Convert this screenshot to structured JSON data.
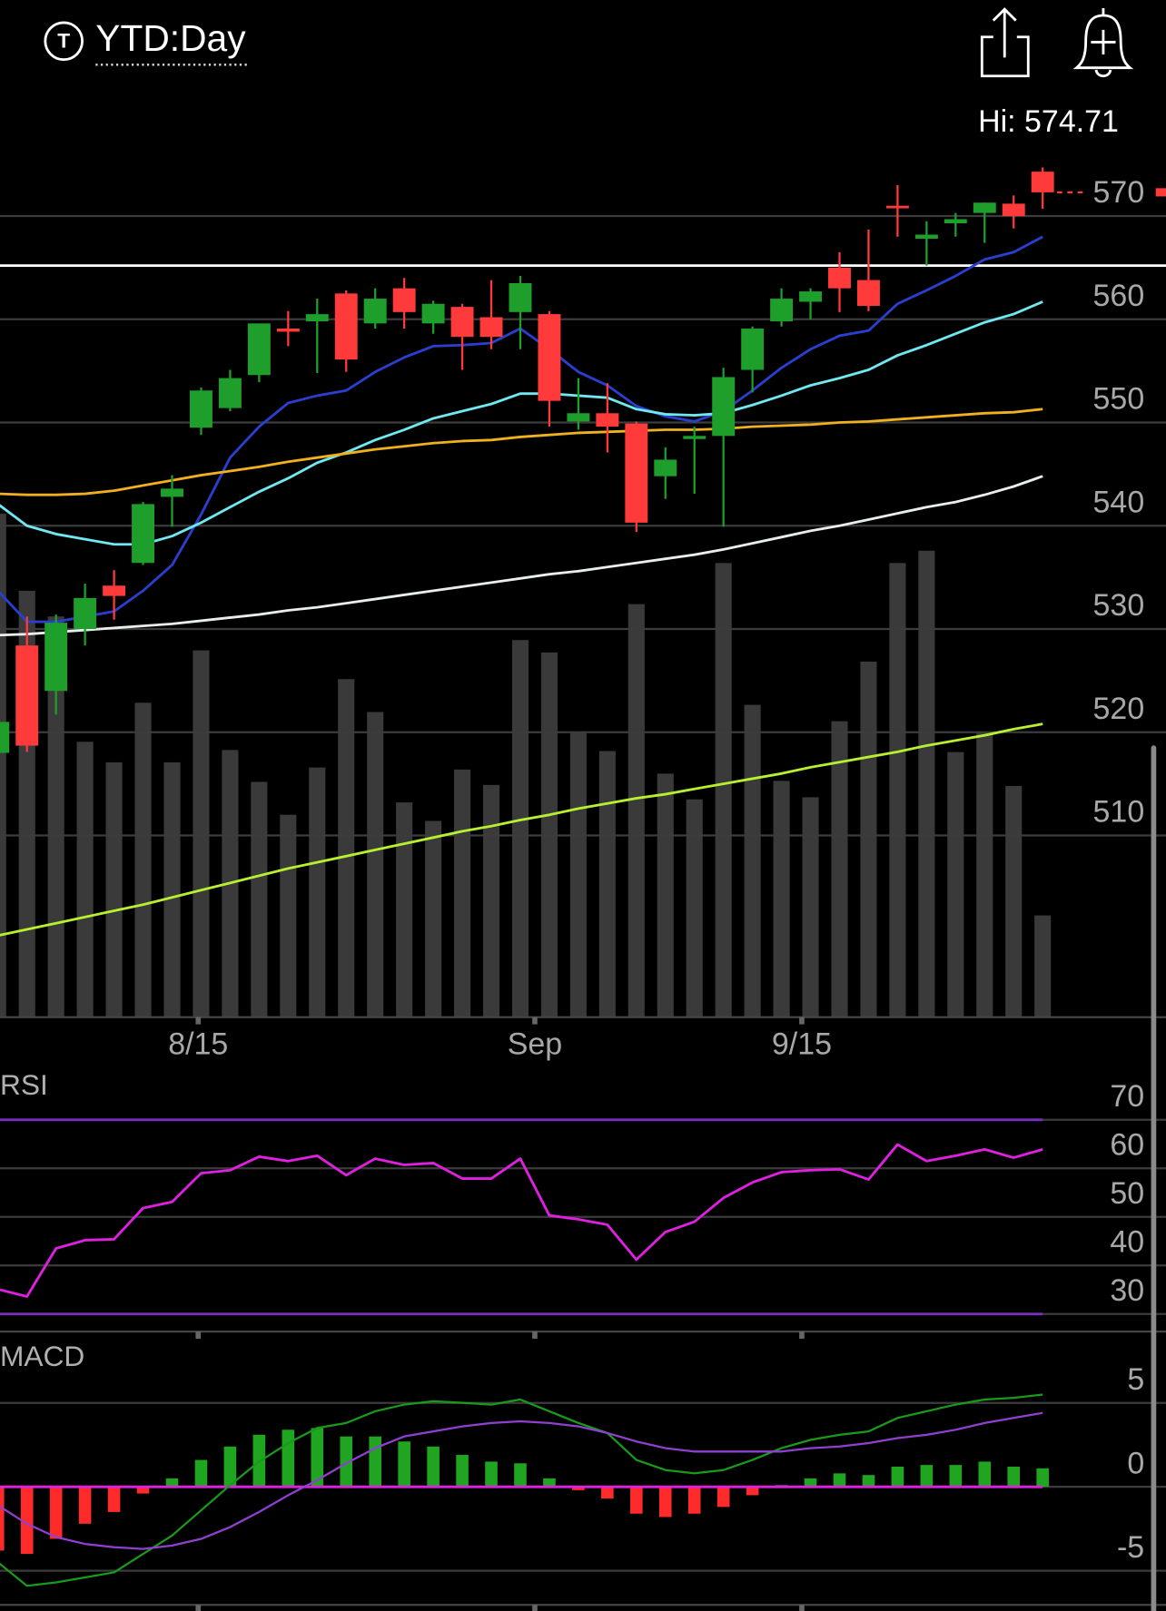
{
  "header": {
    "icon_letter": "T",
    "title": "YTD:Day",
    "high_label": "Hi: 574.71"
  },
  "chart_data": [
    {
      "type": "candlestick",
      "x": [
        0,
        1,
        2,
        3,
        4,
        5,
        6,
        7,
        8,
        9,
        10,
        11,
        12,
        13,
        14,
        15,
        16,
        17,
        18,
        19,
        20,
        21,
        22,
        23,
        24,
        25,
        26,
        27,
        28,
        29,
        30,
        31,
        32,
        33,
        34,
        35,
        36
      ],
      "open": [
        518.0,
        528.4,
        524.0,
        530.0,
        534.2,
        536.4,
        542.8,
        549.5,
        551.4,
        554.6,
        559.1,
        559.8,
        562.5,
        559.6,
        563.0,
        559.6,
        561.2,
        560.2,
        560.7,
        560.5,
        550.1,
        550.9,
        549.9,
        544.8,
        548.4,
        548.7,
        555.1,
        559.8,
        561.7,
        565.0,
        563.8,
        571.0,
        567.8,
        569.3,
        570.3,
        571.2,
        574.3
      ],
      "high": [
        523.0,
        531.2,
        531.4,
        534.4,
        535.7,
        542.3,
        544.9,
        553.4,
        555.1,
        559.6,
        560.8,
        562.0,
        562.8,
        563.0,
        564.0,
        561.8,
        561.5,
        563.8,
        564.2,
        560.8,
        554.3,
        553.8,
        550.1,
        547.6,
        549.6,
        555.3,
        559.3,
        563.0,
        563.0,
        566.5,
        568.7,
        573.0,
        569.5,
        570.3,
        571.3,
        572.0,
        574.71
      ],
      "low": [
        517.5,
        518.1,
        521.7,
        528.4,
        530.9,
        536.2,
        539.9,
        548.8,
        551.1,
        553.9,
        557.4,
        554.8,
        554.9,
        559.1,
        559.1,
        558.6,
        555.1,
        557.1,
        557.1,
        549.6,
        549.3,
        547.1,
        539.4,
        542.6,
        543.1,
        539.9,
        552.9,
        559.3,
        560.0,
        560.7,
        560.8,
        568.0,
        565.2,
        568.0,
        567.4,
        568.8,
        570.7
      ],
      "close": [
        521.0,
        518.7,
        530.6,
        533.0,
        533.2,
        542.1,
        543.6,
        553.1,
        554.3,
        559.6,
        558.8,
        560.5,
        556.1,
        562.0,
        560.7,
        561.5,
        558.3,
        558.3,
        563.5,
        552.1,
        550.9,
        549.6,
        540.3,
        546.4,
        548.7,
        554.4,
        559.1,
        562.0,
        562.7,
        563.0,
        561.3,
        570.8,
        568.2,
        569.7,
        571.3,
        570.0,
        572.3
      ],
      "up_color": "#1e9e2a",
      "down_color": "#ff3a3a",
      "volume": {
        "values": [
          49.0,
          41.5,
          39.0,
          26.8,
          24.8,
          30.6,
          24.8,
          35.7,
          26.0,
          22.9,
          19.7,
          24.3,
          32.9,
          29.7,
          20.9,
          19.1,
          24.1,
          22.6,
          36.7,
          35.5,
          27.7,
          25.9,
          40.2,
          23.7,
          21.2,
          44.2,
          30.4,
          23.0,
          21.4,
          28.8,
          34.6,
          44.2,
          45.4,
          25.8,
          27.8,
          22.5,
          9.9
        ],
        "ylim": [
          0,
          84
        ],
        "color": "#3a3a3a"
      },
      "series": [
        {
          "color": "#2a3fd0",
          "values": [
            533.7,
            530.7,
            530.7,
            531.2,
            531.7,
            533.7,
            536.2,
            541.1,
            546.6,
            549.6,
            551.9,
            552.6,
            553.1,
            554.9,
            556.3,
            557.4,
            557.5,
            557.7,
            559.1,
            557.1,
            554.9,
            553.6,
            551.6,
            550.6,
            550.1,
            551.1,
            553.1,
            555.3,
            557.1,
            558.4,
            558.9,
            561.5,
            562.8,
            564.2,
            565.8,
            566.5,
            568.0
          ]
        },
        {
          "color": "#6fe8f0",
          "values": [
            542.1,
            540.0,
            539.2,
            538.7,
            538.2,
            538.2,
            539.0,
            540.3,
            541.8,
            543.3,
            544.6,
            546.1,
            547.1,
            548.3,
            549.3,
            550.4,
            551.1,
            551.8,
            552.8,
            552.8,
            552.6,
            552.4,
            551.3,
            550.8,
            550.7,
            550.9,
            551.7,
            552.6,
            553.6,
            554.3,
            555.1,
            556.5,
            557.5,
            558.6,
            559.7,
            560.5,
            561.7
          ]
        },
        {
          "color": "#f0b020",
          "values": [
            543.1,
            543.0,
            543.0,
            543.1,
            543.4,
            543.9,
            544.4,
            544.9,
            545.3,
            545.7,
            546.2,
            546.6,
            547.0,
            547.4,
            547.7,
            548.0,
            548.2,
            548.3,
            548.6,
            548.8,
            549.0,
            549.1,
            549.2,
            549.3,
            549.3,
            549.4,
            549.6,
            549.7,
            549.8,
            550.0,
            550.1,
            550.3,
            550.5,
            550.7,
            550.9,
            551.0,
            551.3
          ]
        },
        {
          "color": "#e8eef0",
          "values": [
            529.4,
            529.5,
            529.7,
            529.9,
            530.1,
            530.3,
            530.5,
            530.8,
            531.1,
            531.4,
            531.8,
            532.1,
            532.5,
            532.9,
            533.3,
            533.7,
            534.1,
            534.5,
            534.9,
            535.3,
            535.6,
            536.0,
            536.4,
            536.8,
            537.2,
            537.7,
            538.3,
            538.9,
            539.5,
            540.0,
            540.6,
            541.2,
            541.8,
            542.3,
            543.0,
            543.8,
            544.8
          ]
        },
        {
          "color": "#b8f030",
          "values": [
            500.3,
            500.9,
            501.5,
            502.1,
            502.7,
            503.3,
            504.0,
            504.7,
            505.4,
            506.1,
            506.8,
            507.4,
            508.0,
            508.6,
            509.2,
            509.8,
            510.4,
            510.9,
            511.5,
            512.0,
            512.6,
            513.1,
            513.6,
            514.0,
            514.5,
            515.0,
            515.5,
            516.0,
            516.6,
            517.1,
            517.6,
            518.1,
            518.7,
            519.2,
            519.7,
            520.3,
            520.8
          ]
        }
      ],
      "reference_line": 565.2,
      "xlim": [
        0.07,
        40.25
      ],
      "xticks": [
        {
          "value": 6.9,
          "label": "8/15"
        },
        {
          "value": 18.5,
          "label": "Sep"
        },
        {
          "value": 27.7,
          "label": "9/15"
        }
      ],
      "ylim": [
        492.4,
        576
      ],
      "yticks": [
        570,
        560,
        550,
        540,
        530,
        520,
        510
      ],
      "grid": true
    },
    {
      "type": "line",
      "title": "RSI",
      "x": [
        0,
        1,
        2,
        3,
        4,
        5,
        6,
        7,
        8,
        9,
        10,
        11,
        12,
        13,
        14,
        15,
        16,
        17,
        18,
        19,
        20,
        21,
        22,
        23,
        24,
        25,
        26,
        27,
        28,
        29,
        30,
        31,
        32,
        33,
        34,
        35,
        36
      ],
      "series": [
        {
          "color": "#e020e0",
          "values": [
            35.1,
            33.6,
            43.5,
            45.2,
            45.4,
            51.8,
            53.1,
            59.0,
            59.6,
            62.4,
            61.5,
            62.6,
            58.6,
            62.0,
            60.7,
            61.1,
            57.9,
            57.9,
            62.0,
            50.3,
            49.5,
            48.4,
            41.2,
            46.9,
            49.0,
            53.9,
            57.1,
            59.2,
            59.6,
            59.8,
            57.7,
            64.9,
            61.5,
            62.6,
            63.9,
            62.2,
            63.9
          ]
        }
      ],
      "levels": [
        70,
        30
      ],
      "level_color": "#7b2fc0",
      "xlim": [
        0.07,
        40.25
      ],
      "ylim": [
        26.6,
        79.5
      ],
      "yticks": [
        70,
        60,
        50,
        40,
        30
      ],
      "grid": true
    },
    {
      "type": "macd",
      "title": "MACD",
      "x": [
        0,
        1,
        2,
        3,
        4,
        5,
        6,
        7,
        8,
        9,
        10,
        11,
        12,
        13,
        14,
        15,
        16,
        17,
        18,
        19,
        20,
        21,
        22,
        23,
        24,
        25,
        26,
        27,
        28,
        29,
        30,
        31,
        32,
        33,
        34,
        35,
        36
      ],
      "series": [
        {
          "color": "#1a9a1a",
          "values": [
            -4.5,
            -5.9,
            -5.7,
            -5.4,
            -5.1,
            -4.0,
            -2.9,
            -1.4,
            0.1,
            1.5,
            2.6,
            3.5,
            3.8,
            4.5,
            4.9,
            5.1,
            5.0,
            4.9,
            5.2,
            4.5,
            3.8,
            3.2,
            1.6,
            1.0,
            0.8,
            1.0,
            1.6,
            2.3,
            2.8,
            3.1,
            3.3,
            4.1,
            4.5,
            4.9,
            5.2,
            5.3,
            5.5
          ]
        },
        {
          "color": "#9040d0",
          "values": [
            -1.1,
            -2.2,
            -3.0,
            -3.4,
            -3.6,
            -3.7,
            -3.5,
            -3.1,
            -2.4,
            -1.5,
            -0.5,
            0.4,
            1.4,
            2.3,
            3.0,
            3.3,
            3.6,
            3.8,
            3.9,
            3.8,
            3.6,
            3.2,
            2.7,
            2.3,
            2.1,
            2.1,
            2.1,
            2.1,
            2.3,
            2.4,
            2.6,
            2.9,
            3.1,
            3.4,
            3.8,
            4.1,
            4.4
          ]
        }
      ],
      "histogram": {
        "values": [
          -3.8,
          -4.0,
          -3.1,
          -2.2,
          -1.5,
          -0.4,
          0.5,
          1.6,
          2.4,
          3.1,
          3.4,
          3.5,
          3.0,
          3.0,
          2.7,
          2.4,
          1.9,
          1.5,
          1.4,
          0.5,
          -0.2,
          -0.7,
          -1.6,
          -1.8,
          -1.6,
          -1.2,
          -0.5,
          0.1,
          0.5,
          0.8,
          0.7,
          1.2,
          1.3,
          1.3,
          1.5,
          1.2,
          1.1
        ],
        "up_color": "#1fa51f",
        "down_color": "#ff2a2a"
      },
      "zero_line_color": "#e020e0",
      "xlim": [
        0.07,
        40.25
      ],
      "ylim": [
        -7.4,
        8.7
      ],
      "yticks": [
        5,
        0,
        -5
      ],
      "grid": true
    }
  ]
}
